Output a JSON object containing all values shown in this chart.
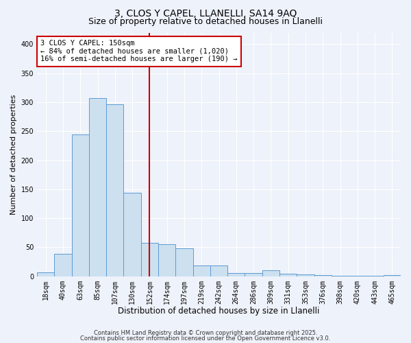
{
  "title1": "3, CLOS Y CAPEL, LLANELLI, SA14 9AQ",
  "title2": "Size of property relative to detached houses in Llanelli",
  "xlabel": "Distribution of detached houses by size in Llanelli",
  "ylabel": "Number of detached properties",
  "categories": [
    "18sqm",
    "40sqm",
    "63sqm",
    "85sqm",
    "107sqm",
    "130sqm",
    "152sqm",
    "174sqm",
    "197sqm",
    "219sqm",
    "242sqm",
    "264sqm",
    "286sqm",
    "309sqm",
    "331sqm",
    "353sqm",
    "376sqm",
    "398sqm",
    "420sqm",
    "443sqm",
    "465sqm"
  ],
  "values": [
    7,
    39,
    244,
    307,
    296,
    144,
    58,
    55,
    48,
    18,
    19,
    5,
    5,
    10,
    4,
    3,
    2,
    1,
    1,
    1,
    2
  ],
  "bar_color": "#cce0f0",
  "bar_edge_color": "#5b9bd5",
  "vline_x_index": 6,
  "vline_color": "#cc0000",
  "annotation_line1": "3 CLOS Y CAPEL: 150sqm",
  "annotation_line2": "← 84% of detached houses are smaller (1,020)",
  "annotation_line3": "16% of semi-detached houses are larger (190) →",
  "annotation_box_color": "#ffffff",
  "annotation_box_edge": "#cc0000",
  "ylim": [
    0,
    420
  ],
  "yticks": [
    0,
    50,
    100,
    150,
    200,
    250,
    300,
    350,
    400
  ],
  "background_color": "#eef2fa",
  "footer1": "Contains HM Land Registry data © Crown copyright and database right 2025.",
  "footer2": "Contains public sector information licensed under the Open Government Licence v3.0.",
  "title1_fontsize": 10,
  "title2_fontsize": 9,
  "ylabel_fontsize": 8,
  "xlabel_fontsize": 8.5,
  "tick_fontsize": 7,
  "annotation_fontsize": 7.5,
  "footer_fontsize": 6
}
